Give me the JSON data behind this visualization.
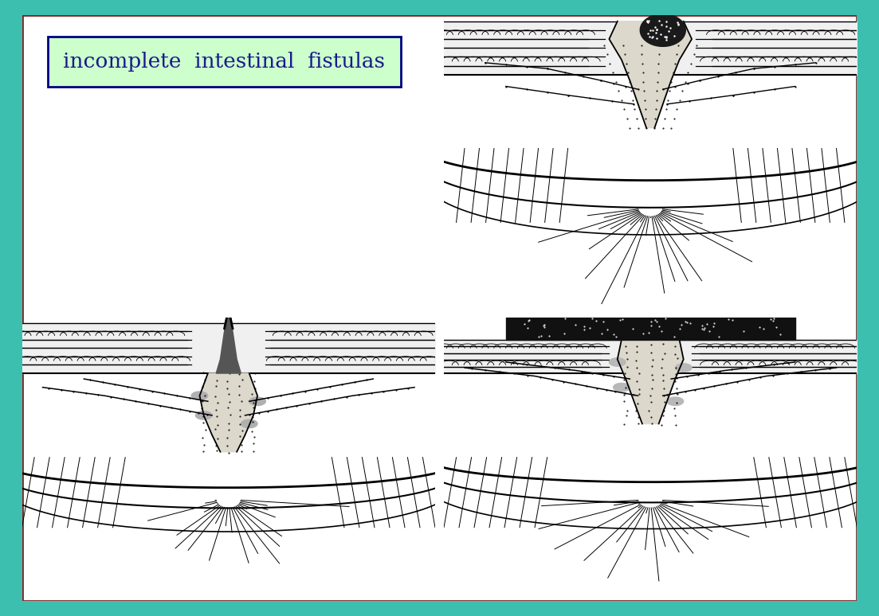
{
  "background_color": "#3dbfb0",
  "panel_color": "#ffffff",
  "panel_border_color": "#8b2020",
  "label_text": "incomplete  intestinal  fistulas",
  "label_bg": "#ccffcc",
  "label_border": "#000080",
  "label_text_color": "#1a1a8c",
  "label_fontsize": 19,
  "fig_width": 11.03,
  "fig_height": 7.74,
  "teal_border": "#3dbfb0",
  "image_b64": ""
}
